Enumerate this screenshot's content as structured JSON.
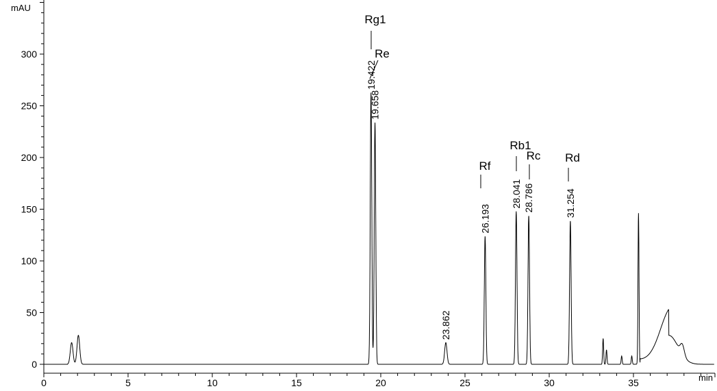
{
  "chart_data": {
    "type": "line",
    "title": "",
    "ylabel": "mAU",
    "xlabel": "min",
    "xlim": [
      0,
      39.8
    ],
    "ylim": [
      -5,
      352
    ],
    "xticks": [
      0,
      5,
      10,
      15,
      20,
      25,
      30,
      35
    ],
    "yticks": [
      0,
      50,
      100,
      150,
      200,
      250,
      300
    ],
    "grid": false,
    "line_color": "#000000",
    "peaks_labeled": [
      {
        "rt": 19.422,
        "rt_label": "19.422",
        "height": 263,
        "compound": "Rg1"
      },
      {
        "rt": 19.658,
        "rt_label": "19.658",
        "height": 234,
        "compound": "Re"
      },
      {
        "rt": 23.862,
        "rt_label": "23.862",
        "height": 21,
        "compound": ""
      },
      {
        "rt": 26.193,
        "rt_label": "26.193",
        "height": 124,
        "compound": "Rf"
      },
      {
        "rt": 28.041,
        "rt_label": "28.041",
        "height": 148,
        "compound": "Rb1"
      },
      {
        "rt": 28.786,
        "rt_label": "28.786",
        "height": 144,
        "compound": "Rc"
      },
      {
        "rt": 31.254,
        "rt_label": "31.254",
        "height": 139,
        "compound": "Rd"
      }
    ],
    "peaks_unlabeled": [
      {
        "rt": 1.65,
        "height": 21
      },
      {
        "rt": 2.05,
        "height": 28
      },
      {
        "rt": 33.2,
        "height": 25
      },
      {
        "rt": 33.4,
        "height": 14
      },
      {
        "rt": 34.3,
        "height": 8
      },
      {
        "rt": 34.9,
        "height": 8
      },
      {
        "rt": 35.3,
        "height": 146
      },
      {
        "rt": 37.1,
        "height": 28
      },
      {
        "rt": 37.9,
        "height": 10
      }
    ]
  }
}
